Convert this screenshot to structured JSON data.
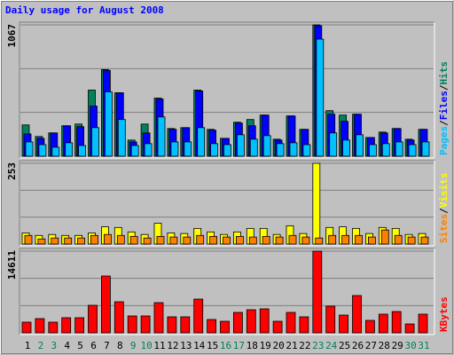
{
  "title": "Daily usage for August 2008",
  "legend_separator": "/",
  "chart_data": [
    {
      "type": "bar",
      "ylim": [
        0,
        1067
      ],
      "yticks": [
        1067
      ],
      "series": [
        {
          "name": "Hits",
          "color": "#00805c",
          "values": [
            254,
            160,
            189,
            247,
            261,
            537,
            704,
            515,
            131,
            261,
            472,
            225,
            232,
            537,
            218,
            145,
            276,
            298,
            334,
            138,
            327,
            218,
            1067,
            370,
            334,
            341,
            152,
            196,
            225,
            138,
            218
          ]
        },
        {
          "name": "Files",
          "color": "#0000ff",
          "values": [
            181,
            145,
            189,
            247,
            240,
            407,
            697,
            515,
            116,
            189,
            465,
            218,
            232,
            530,
            211,
            145,
            269,
            247,
            334,
            131,
            327,
            218,
            1060,
            341,
            283,
            341,
            152,
            189,
            225,
            131,
            218
          ]
        },
        {
          "name": "Pages",
          "color": "#00c0ff",
          "values": [
            116,
            94,
            73,
            109,
            87,
            232,
            523,
            298,
            87,
            102,
            319,
            116,
            116,
            232,
            102,
            94,
            174,
            138,
            167,
            102,
            109,
            94,
            951,
            189,
            131,
            174,
            94,
            102,
            116,
            94,
            116
          ]
        }
      ]
    },
    {
      "type": "bar",
      "ylim": [
        0,
        253
      ],
      "yticks": [
        253
      ],
      "series": [
        {
          "name": "Visits",
          "color": "#ffff00",
          "values": [
            35,
            27,
            30,
            27,
            27,
            35,
            54,
            52,
            38,
            30,
            65,
            35,
            33,
            49,
            38,
            30,
            38,
            49,
            49,
            30,
            57,
            33,
            253,
            52,
            54,
            49,
            33,
            52,
            49,
            30,
            33
          ]
        },
        {
          "name": "Sites",
          "color": "#ff8000",
          "values": [
            27,
            16,
            19,
            19,
            19,
            27,
            30,
            27,
            24,
            19,
            24,
            22,
            22,
            27,
            24,
            22,
            24,
            22,
            24,
            22,
            27,
            22,
            19,
            27,
            27,
            27,
            22,
            44,
            27,
            22,
            22
          ]
        }
      ]
    },
    {
      "type": "bar",
      "ylim": [
        0,
        14611
      ],
      "yticks": [
        14611
      ],
      "categories": [
        "1",
        "2",
        "3",
        "4",
        "5",
        "6",
        "7",
        "8",
        "9",
        "10",
        "11",
        "12",
        "13",
        "14",
        "15",
        "16",
        "17",
        "18",
        "19",
        "20",
        "21",
        "22",
        "23",
        "24",
        "25",
        "26",
        "27",
        "28",
        "29",
        "30",
        "31"
      ],
      "label_colors": [
        "#000000",
        "#00805c",
        "#00805c",
        "#000000",
        "#000000",
        "#000000",
        "#000000",
        "#000000",
        "#00805c",
        "#00805c",
        "#000000",
        "#000000",
        "#000000",
        "#000000",
        "#000000",
        "#00805c",
        "#00805c",
        "#000000",
        "#000000",
        "#000000",
        "#000000",
        "#000000",
        "#00805c",
        "#00805c",
        "#000000",
        "#000000",
        "#000000",
        "#000000",
        "#000000",
        "#00805c",
        "#00805c"
      ],
      "series": [
        {
          "name": "KBytes",
          "color": "#ff0000",
          "values": [
            1906,
            2541,
            1906,
            2700,
            2700,
            4923,
            10163,
            5558,
            3017,
            3017,
            5399,
            2858,
            2858,
            6034,
            2382,
            2064,
            3652,
            4129,
            4288,
            2064,
            3652,
            2858,
            14611,
            4764,
            3176,
            6670,
            2223,
            3335,
            3811,
            1588,
            3335
          ]
        }
      ]
    }
  ]
}
